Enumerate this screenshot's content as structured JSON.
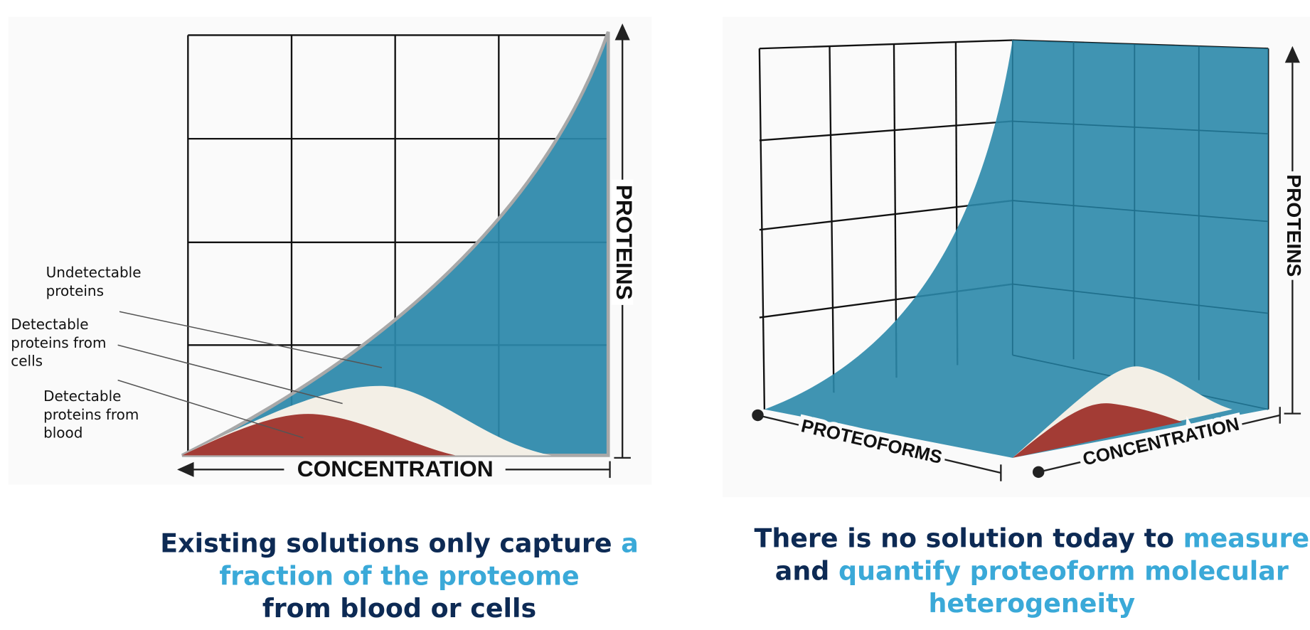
{
  "left": {
    "y_axis": "PROTEINS",
    "x_axis": "CONCENTRATION",
    "labels": [
      {
        "lines": [
          "Undetectable",
          "proteins"
        ]
      },
      {
        "lines": [
          "Detectable",
          "proteins from",
          "cells"
        ]
      },
      {
        "lines": [
          "Detectable",
          "proteins from",
          "blood"
        ]
      }
    ],
    "caption": [
      [
        {
          "text": "Existing solutions only capture ",
          "color": "#0d2a54"
        },
        {
          "text": "a",
          "color": "#3aa9d8"
        }
      ],
      [
        {
          "text": "fraction of the proteome",
          "color": "#3aa9d8"
        }
      ],
      [
        {
          "text": "from blood or cells",
          "color": "#0d2a54"
        }
      ]
    ]
  },
  "right": {
    "y_axis": "PROTEINS",
    "x_axis": "CONCENTRATION",
    "z_axis": "PROTEOFORMS",
    "caption": [
      [
        {
          "text": "There is no solution today to ",
          "color": "#0d2a54"
        },
        {
          "text": "measure",
          "color": "#3aa9d8"
        }
      ],
      [
        {
          "text": "and ",
          "color": "#0d2a54"
        },
        {
          "text": "quantify proteoform molecular",
          "color": "#3aa9d8"
        }
      ],
      [
        {
          "text": "heterogeneity",
          "color": "#3aa9d8"
        }
      ]
    ]
  }
}
